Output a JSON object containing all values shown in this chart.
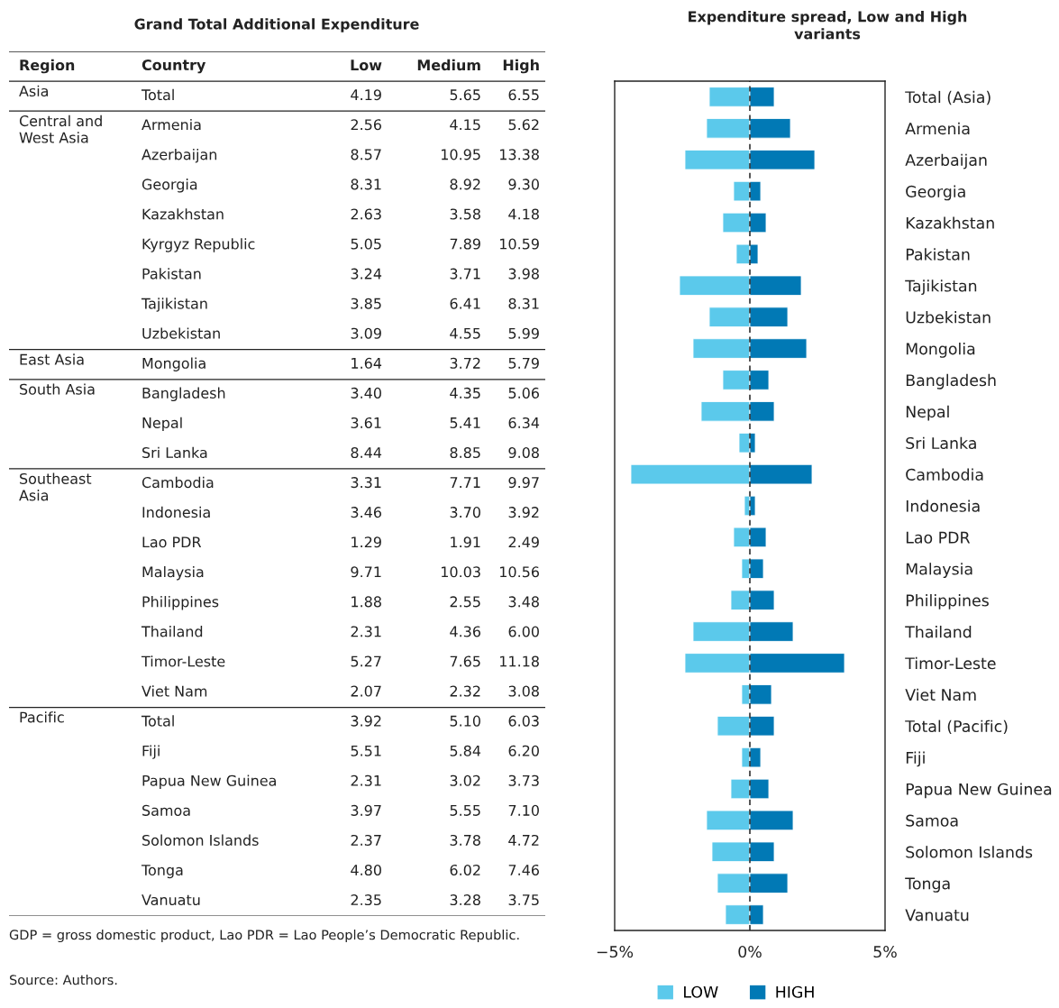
{
  "chart_data": [
    {
      "type": "heatmap",
      "title": "Grand Total Additional Expenditure",
      "ylabel": "Country",
      "y2label": "Region",
      "categories": [
        "Low",
        "Medium",
        "High"
      ],
      "y_categories": [
        "Total",
        "Armenia",
        "Azerbaijan",
        "Georgia",
        "Kazakhstan",
        "Kyrgyz Republic",
        "Pakistan",
        "Tajikistan",
        "Uzbekistan",
        "Mongolia",
        "Bangladesh",
        "Nepal",
        "Sri Lanka",
        "Cambodia",
        "Indonesia",
        "Lao PDR",
        "Malaysia",
        "Philippines",
        "Thailand",
        "Timor-Leste",
        "Viet Nam",
        "Total",
        "Fiji",
        "Papua New Guinea",
        "Samoa",
        "Solomon Islands",
        "Tonga",
        "Vanuatu"
      ],
      "y2_categories": [
        "Asia",
        "Central and\nWest Asia",
        null,
        null,
        null,
        null,
        null,
        null,
        null,
        "East Asia",
        "South Asia",
        null,
        null,
        "Southeast\nAsia",
        null,
        null,
        null,
        null,
        null,
        null,
        null,
        "Pacific",
        null,
        null,
        null,
        null,
        null,
        null
      ],
      "cells": [
        [
          4.19,
          5.65,
          6.55
        ],
        [
          2.56,
          4.15,
          5.62
        ],
        [
          8.57,
          10.95,
          13.38
        ],
        [
          8.31,
          8.92,
          9.3
        ],
        [
          2.63,
          3.58,
          4.18
        ],
        [
          5.05,
          7.89,
          10.59
        ],
        [
          3.24,
          3.71,
          3.98
        ],
        [
          3.85,
          6.41,
          8.31
        ],
        [
          3.09,
          4.55,
          5.99
        ],
        [
          1.64,
          3.72,
          5.79
        ],
        [
          3.4,
          4.35,
          5.06
        ],
        [
          3.61,
          5.41,
          6.34
        ],
        [
          8.44,
          8.85,
          9.08
        ],
        [
          3.31,
          7.71,
          9.97
        ],
        [
          3.46,
          3.7,
          3.92
        ],
        [
          1.29,
          1.91,
          2.49
        ],
        [
          9.71,
          10.03,
          10.56
        ],
        [
          1.88,
          2.55,
          3.48
        ],
        [
          2.31,
          4.36,
          6.0
        ],
        [
          5.27,
          7.65,
          11.18
        ],
        [
          2.07,
          2.32,
          3.08
        ],
        [
          3.92,
          5.1,
          6.03
        ],
        [
          5.51,
          5.84,
          6.2
        ],
        [
          2.31,
          3.02,
          3.73
        ],
        [
          3.97,
          5.55,
          7.1
        ],
        [
          2.37,
          3.78,
          4.72
        ],
        [
          4.8,
          6.02,
          7.46
        ],
        [
          2.35,
          3.28,
          3.75
        ]
      ],
      "cell_labels": [
        [
          "4.19",
          "5.65",
          "6.55"
        ],
        [
          "2.56",
          "4.15",
          "5.62"
        ],
        [
          "8.57",
          "10.95",
          "13.38"
        ],
        [
          "8.31",
          "8.92",
          "9.30"
        ],
        [
          "2.63",
          "3.58",
          "4.18"
        ],
        [
          "5.05",
          "7.89",
          "10.59"
        ],
        [
          "3.24",
          "3.71",
          "3.98"
        ],
        [
          "3.85",
          "6.41",
          "8.31"
        ],
        [
          "3.09",
          "4.55",
          "5.99"
        ],
        [
          "1.64",
          "3.72",
          "5.79"
        ],
        [
          "3.40",
          "4.35",
          "5.06"
        ],
        [
          "3.61",
          "5.41",
          "6.34"
        ],
        [
          "8.44",
          "8.85",
          "9.08"
        ],
        [
          "3.31",
          "7.71",
          "9.97"
        ],
        [
          "3.46",
          "3.70",
          "3.92"
        ],
        [
          "1.29",
          "1.91",
          "2.49"
        ],
        [
          "9.71",
          "10.03",
          "10.56"
        ],
        [
          "1.88",
          "2.55",
          "3.48"
        ],
        [
          "2.31",
          "4.36",
          "6.00"
        ],
        [
          "5.27",
          "7.65",
          "11.18"
        ],
        [
          "2.07",
          "2.32",
          "3.08"
        ],
        [
          "3.92",
          "5.10",
          "6.03"
        ],
        [
          "5.51",
          "5.84",
          "6.20"
        ],
        [
          "2.31",
          "3.02",
          "3.73"
        ],
        [
          "3.97",
          "5.55",
          "7.10"
        ],
        [
          "2.37",
          "3.78",
          "4.72"
        ],
        [
          "4.80",
          "6.02",
          "7.46"
        ],
        [
          "2.35",
          "3.28",
          "3.75"
        ]
      ],
      "annotations": [
        "GDP = gross domestic product, Lao PDR = Lao People’s Democratic Republic.",
        "Source: Authors."
      ]
    },
    {
      "type": "bar",
      "orientation": "horizontal",
      "stacked": true,
      "title": "Expenditure spread, Low and High variants",
      "categories": [
        "Total (Asia)",
        "Armenia",
        "Azerbaijan",
        "Georgia",
        "Kazakhstan",
        "Pakistan",
        "Tajikistan",
        "Uzbekistan",
        "Mongolia",
        "Bangladesh",
        "Nepal",
        "Sri Lanka",
        "Cambodia",
        "Indonesia",
        "Lao PDR",
        "Malaysia",
        "Philippines",
        "Thailand",
        "Timor-Leste",
        "Viet Nam",
        "Total (Pacific)",
        "Fiji",
        "Papua New Guinea",
        "Samoa",
        "Solomon Islands",
        "Tonga",
        "Vanuatu"
      ],
      "series": [
        {
          "name": "LOW",
          "color": "#5bc9eb",
          "values": [
            -1.5,
            -1.6,
            -2.4,
            -0.6,
            -1.0,
            -0.5,
            -2.6,
            -1.5,
            -2.1,
            -1.0,
            -1.8,
            -0.4,
            -4.4,
            -0.2,
            -0.6,
            -0.3,
            -0.7,
            -2.1,
            -2.4,
            -0.3,
            -1.2,
            -0.3,
            -0.7,
            -1.6,
            -1.4,
            -1.2,
            -0.9
          ]
        },
        {
          "name": "HIGH",
          "color": "#0179b5",
          "values": [
            0.9,
            1.5,
            2.4,
            0.4,
            0.6,
            0.3,
            1.9,
            1.4,
            2.1,
            0.7,
            0.9,
            0.2,
            2.3,
            0.2,
            0.6,
            0.5,
            0.9,
            1.6,
            3.5,
            0.8,
            0.9,
            0.4,
            0.7,
            1.6,
            0.9,
            1.4,
            0.5
          ]
        }
      ],
      "xlim": [
        -5,
        5
      ],
      "xticks": [
        {
          "value": -5,
          "label": "−5%"
        },
        {
          "value": 0,
          "label": "0%"
        },
        {
          "value": 5,
          "label": "5%"
        }
      ],
      "ref_lines": [
        {
          "axis": "x",
          "value": 0,
          "color": "#222222",
          "line_style": "dashed"
        }
      ],
      "grid": false,
      "legend": "bottom"
    }
  ]
}
